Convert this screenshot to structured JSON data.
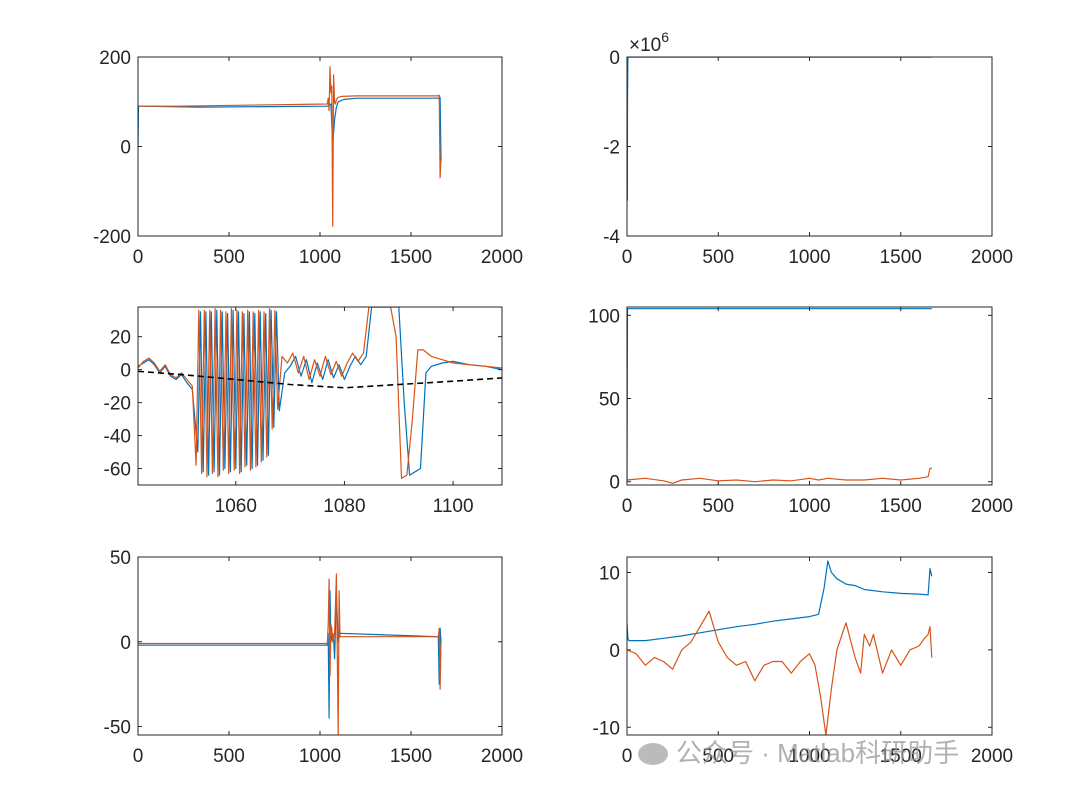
{
  "colors": {
    "blue": "#0072BD",
    "orange": "#D95319",
    "black": "#000000",
    "axis": "#262626"
  },
  "watermark": "公众号 · Matlab科研助手",
  "chart_data": [
    {
      "type": "line",
      "name": "top-left",
      "xlim": [
        0,
        2000
      ],
      "ylim": [
        -200,
        200
      ],
      "xticks": [
        "0",
        "500",
        "1000",
        "1500",
        "2000"
      ],
      "xtick_values": [
        0,
        500,
        1000,
        1500,
        2000
      ],
      "yticks": [
        "200",
        "0",
        "-200"
      ],
      "ytick_values": [
        200,
        0,
        -200
      ],
      "exponent_label": "",
      "series": [
        {
          "name": "blue",
          "color": "blue",
          "x": [
            0,
            3,
            6,
            340,
            1040,
            1050,
            1060,
            1070,
            1080,
            1090,
            1100,
            1130,
            1200,
            1300,
            1400,
            1650,
            1655,
            1660,
            1665,
            1670
          ],
          "y": [
            0,
            90,
            90,
            88,
            90,
            93,
            95,
            5,
            60,
            88,
            100,
            105,
            108,
            108,
            108,
            108,
            105,
            110,
            -30,
            -30
          ]
        },
        {
          "name": "orange",
          "color": "orange",
          "x": [
            10,
            200,
            1040,
            1045,
            1050,
            1055,
            1060,
            1065,
            1070,
            1075,
            1080,
            1085,
            1090,
            1100,
            1120,
            1200,
            1400,
            1650,
            1655,
            1660,
            1665
          ],
          "y": [
            90,
            90,
            95,
            108,
            80,
            178,
            120,
            135,
            -178,
            160,
            98,
            95,
            105,
            110,
            112,
            113,
            113,
            113,
            115,
            -70,
            -25
          ]
        }
      ]
    },
    {
      "type": "line",
      "name": "top-right",
      "xlim": [
        0,
        2000
      ],
      "ylim": [
        -4,
        0
      ],
      "xticks": [
        "0",
        "500",
        "1000",
        "1500",
        "2000"
      ],
      "xtick_values": [
        0,
        500,
        1000,
        1500,
        2000
      ],
      "yticks": [
        "0",
        "-2",
        "-4"
      ],
      "ytick_values": [
        0,
        -2,
        -4
      ],
      "exponent_label": "×10^6",
      "series": [
        {
          "name": "blue",
          "color": "blue",
          "x": [
            0,
            2,
            3,
            5,
            1670
          ],
          "y": [
            0,
            -3.2,
            -1,
            0,
            0
          ]
        },
        {
          "name": "orange",
          "color": "orange",
          "x": [
            5,
            1670
          ],
          "y": [
            0,
            0
          ]
        }
      ]
    },
    {
      "type": "line",
      "name": "middle-left",
      "xlim": [
        1042,
        1109
      ],
      "ylim": [
        -70,
        38
      ],
      "xticks": [
        "1060",
        "1080",
        "1100"
      ],
      "xtick_values": [
        1060,
        1080,
        1100
      ],
      "yticks": [
        "20",
        "0",
        "-20",
        "-40",
        "-60"
      ],
      "ytick_values": [
        20,
        0,
        -20,
        -40,
        -60
      ],
      "exponent_label": "",
      "series": [
        {
          "name": "blue",
          "color": "blue",
          "x": [
            1042,
            1043,
            1044,
            1045,
            1046,
            1047,
            1048,
            1049,
            1050,
            1051,
            1052,
            1053,
            1053.5,
            1054,
            1054.5,
            1055,
            1055.5,
            1056,
            1056.5,
            1057,
            1057.5,
            1058,
            1058.5,
            1059,
            1059.5,
            1060,
            1060.5,
            1061,
            1061.5,
            1062,
            1062.5,
            1063,
            1063.5,
            1064,
            1064.5,
            1065,
            1065.5,
            1066,
            1066.5,
            1067,
            1067.5,
            1068,
            1069,
            1070,
            1071,
            1072,
            1073,
            1074,
            1075,
            1076,
            1077,
            1078,
            1079,
            1080,
            1081,
            1082,
            1083,
            1084,
            1085,
            1086,
            1087,
            1088,
            1089,
            1090,
            1091,
            1092,
            1093,
            1094,
            1095,
            1096,
            1098,
            1100,
            1103,
            1106,
            1109
          ],
          "y": [
            2,
            4,
            6,
            3,
            -2,
            2,
            -4,
            -6,
            -3,
            -8,
            -12,
            -50,
            35,
            -62,
            35,
            -64,
            35,
            -62,
            36,
            -64,
            35,
            -60,
            34,
            -62,
            36,
            -60,
            35,
            -62,
            34,
            -58,
            35,
            -60,
            34,
            -58,
            35,
            -55,
            34,
            -52,
            36,
            -35,
            35,
            -25,
            -2,
            2,
            8,
            -4,
            6,
            -8,
            4,
            -6,
            6,
            -5,
            3,
            -6,
            2,
            8,
            3,
            8,
            38,
            38,
            38,
            38,
            38,
            38,
            -20,
            -64,
            -62,
            -60,
            -2,
            2,
            4,
            5,
            3,
            2,
            0
          ]
        },
        {
          "name": "orange",
          "color": "orange",
          "x": [
            1042,
            1043,
            1044,
            1045,
            1046,
            1047,
            1048,
            1049,
            1050,
            1051,
            1052,
            1052.7,
            1053.2,
            1053.7,
            1054.2,
            1054.7,
            1055.2,
            1055.7,
            1056.2,
            1056.7,
            1057.2,
            1057.7,
            1058.2,
            1058.7,
            1059.2,
            1059.7,
            1060.2,
            1060.7,
            1061.2,
            1061.7,
            1062.2,
            1062.7,
            1063.2,
            1063.7,
            1064.2,
            1064.7,
            1065.2,
            1065.7,
            1066.2,
            1066.7,
            1067.2,
            1067.7,
            1068.5,
            1069.5,
            1070.5,
            1071.5,
            1072.5,
            1073.5,
            1074.5,
            1075.5,
            1076.5,
            1077.5,
            1078.5,
            1079.5,
            1080.5,
            1081.5,
            1082.5,
            1083.5,
            1084.5,
            1085.5,
            1086.5,
            1087.5,
            1088.5,
            1089.5,
            1090.5,
            1091.5,
            1092.5,
            1093.5,
            1094.5,
            1096,
            1098,
            1100,
            1103,
            1106,
            1109
          ],
          "y": [
            1,
            5,
            7,
            4,
            -1,
            3,
            -3,
            -5,
            -2,
            -6,
            -10,
            -58,
            36,
            -63,
            36,
            -65,
            36,
            -63,
            37,
            -65,
            36,
            -61,
            35,
            -63,
            37,
            -61,
            36,
            -63,
            35,
            -59,
            36,
            -61,
            35,
            -59,
            36,
            -56,
            35,
            -53,
            37,
            -36,
            36,
            -24,
            8,
            4,
            10,
            -2,
            8,
            -6,
            6,
            -4,
            8,
            -3,
            5,
            -4,
            4,
            10,
            5,
            10,
            38,
            38,
            38,
            38,
            38,
            20,
            -66,
            -64,
            -30,
            12,
            12,
            8,
            6,
            4,
            3,
            2,
            1
          ]
        },
        {
          "name": "black",
          "color": "black",
          "dash": "6 4",
          "x": [
            1042,
            1050,
            1060,
            1070,
            1080,
            1090,
            1100,
            1109
          ],
          "y": [
            -1,
            -3,
            -6,
            -9,
            -11,
            -9,
            -7,
            -5
          ]
        }
      ]
    },
    {
      "type": "line",
      "name": "middle-right",
      "xlim": [
        0,
        2000
      ],
      "ylim": [
        -2,
        105
      ],
      "xticks": [
        "0",
        "500",
        "1000",
        "1500",
        "2000"
      ],
      "xtick_values": [
        0,
        500,
        1000,
        1500,
        2000
      ],
      "yticks": [
        "100",
        "50",
        "0"
      ],
      "ytick_values": [
        100,
        50,
        0
      ],
      "exponent_label": "",
      "series": [
        {
          "name": "blue",
          "color": "blue",
          "x": [
            0,
            3,
            6,
            1670
          ],
          "y": [
            0,
            104,
            104,
            104
          ]
        },
        {
          "name": "orange",
          "color": "orange",
          "x": [
            0,
            100,
            200,
            250,
            300,
            400,
            500,
            600,
            700,
            800,
            900,
            1000,
            1050,
            1100,
            1150,
            1200,
            1300,
            1400,
            1500,
            1600,
            1650,
            1660,
            1670
          ],
          "y": [
            1,
            2,
            0.5,
            -1,
            1,
            2,
            0.5,
            1,
            0,
            1,
            0.5,
            2,
            1,
            2,
            1.5,
            1,
            1,
            2,
            1,
            2,
            3,
            8,
            8
          ]
        }
      ]
    },
    {
      "type": "line",
      "name": "bottom-left",
      "xlim": [
        0,
        2000
      ],
      "ylim": [
        -55,
        50
      ],
      "xticks": [
        "0",
        "500",
        "1000",
        "1500",
        "2000"
      ],
      "xtick_values": [
        0,
        500,
        1000,
        1500,
        2000
      ],
      "yticks": [
        "50",
        "0",
        "-50"
      ],
      "ytick_values": [
        50,
        0,
        -50
      ],
      "exponent_label": "",
      "series": [
        {
          "name": "blue",
          "color": "blue",
          "x": [
            0,
            1040,
            1045,
            1050,
            1055,
            1060,
            1070,
            1075,
            1080,
            1090,
            1100,
            1110,
            1650,
            1655,
            1660,
            1665
          ],
          "y": [
            -2,
            -2,
            5,
            -45,
            30,
            0,
            5,
            2,
            -10,
            28,
            0,
            5,
            3,
            -25,
            8,
            0
          ]
        },
        {
          "name": "orange",
          "color": "orange",
          "x": [
            0,
            1040,
            1045,
            1050,
            1055,
            1060,
            1065,
            1070,
            1080,
            1090,
            1100,
            1105,
            1110,
            1650,
            1655,
            1660,
            1665
          ],
          "y": [
            -1,
            -1,
            10,
            37,
            -20,
            10,
            8,
            0,
            5,
            40,
            -55,
            30,
            3,
            3,
            8,
            -28,
            0
          ]
        }
      ]
    },
    {
      "type": "line",
      "name": "bottom-right",
      "xlim": [
        0,
        2000
      ],
      "ylim": [
        -11,
        12
      ],
      "xticks": [
        "0",
        "500",
        "1000",
        "1500",
        "2000"
      ],
      "xtick_values": [
        0,
        500,
        1000,
        1500,
        2000
      ],
      "yticks": [
        "10",
        "0",
        "-10"
      ],
      "ytick_values": [
        10,
        0,
        -10
      ],
      "exponent_label": "",
      "series": [
        {
          "name": "blue",
          "color": "blue",
          "x": [
            0,
            5,
            10,
            100,
            200,
            300,
            400,
            500,
            600,
            700,
            800,
            900,
            1000,
            1050,
            1080,
            1100,
            1120,
            1150,
            1200,
            1250,
            1300,
            1400,
            1500,
            1600,
            1650,
            1660,
            1670
          ],
          "y": [
            3.5,
            1.5,
            1.2,
            1.2,
            1.5,
            1.8,
            2.2,
            2.6,
            3.0,
            3.3,
            3.7,
            4.0,
            4.3,
            4.6,
            8.0,
            11.5,
            10,
            9.2,
            8.5,
            8.3,
            7.8,
            7.5,
            7.3,
            7.2,
            7.1,
            10.5,
            9.5
          ]
        },
        {
          "name": "orange",
          "color": "orange",
          "x": [
            0,
            50,
            100,
            150,
            200,
            250,
            300,
            350,
            400,
            450,
            500,
            550,
            600,
            650,
            700,
            750,
            800,
            850,
            900,
            950,
            1000,
            1030,
            1060,
            1090,
            1100,
            1120,
            1150,
            1200,
            1250,
            1280,
            1300,
            1330,
            1350,
            1400,
            1450,
            1500,
            1550,
            1600,
            1630,
            1650,
            1660,
            1670
          ],
          "y": [
            0,
            -0.5,
            -2,
            -1,
            -1.5,
            -2.5,
            0,
            1,
            3,
            5,
            1,
            -1,
            -2,
            -1.5,
            -4,
            -2,
            -1.5,
            -1.5,
            -3,
            -1.5,
            -0.5,
            -2,
            -6,
            -11,
            -9,
            -5,
            0,
            3.5,
            -1,
            -3,
            2,
            0.5,
            2,
            -3,
            0,
            -2,
            0,
            0.5,
            1.5,
            2,
            3,
            -1
          ]
        }
      ]
    }
  ]
}
